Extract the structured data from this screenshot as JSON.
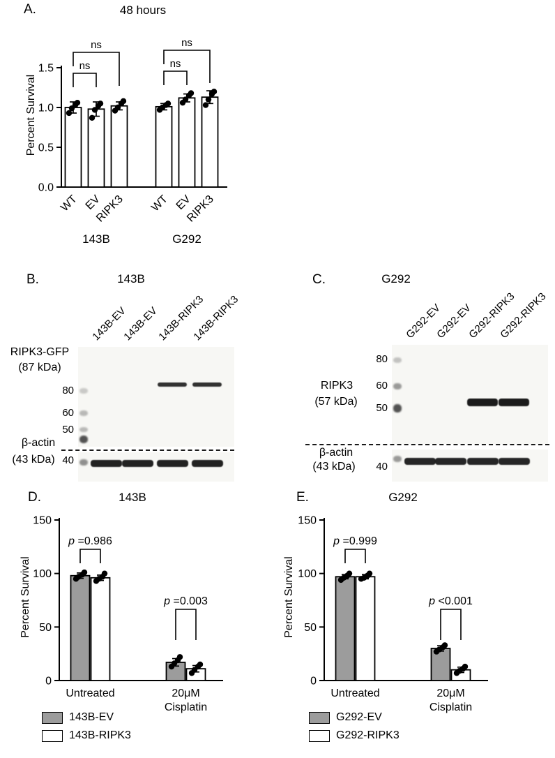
{
  "chart_data": [
    {
      "panel": "A.",
      "type": "bar",
      "title": "48 hours",
      "ylabel": "Percent Survival",
      "ylim": [
        0,
        1.5
      ],
      "yticks": [
        "0.0",
        "0.5",
        "1.0",
        "1.5"
      ],
      "group_labels": [
        "143B",
        "G292"
      ],
      "categories": [
        "WT",
        "EV",
        "RIPK3",
        "WT",
        "EV",
        "RIPK3"
      ],
      "bar_fill": "#ffffff",
      "values": [
        1.0,
        0.98,
        1.02,
        1.01,
        1.12,
        1.13
      ],
      "errors": [
        0.07,
        0.09,
        0.05,
        0.04,
        0.05,
        0.08
      ],
      "points": [
        [
          0.93,
          0.99,
          1.03,
          1.06
        ],
        [
          0.87,
          0.97,
          1.02,
          1.05
        ],
        [
          0.96,
          1.0,
          1.05,
          1.08
        ],
        [
          0.97,
          1.0,
          1.03,
          1.05
        ],
        [
          1.06,
          1.1,
          1.15,
          1.18
        ],
        [
          1.03,
          1.1,
          1.17,
          1.2
        ]
      ],
      "significance": [
        {
          "bars": [
            0,
            1
          ],
          "label": "ns"
        },
        {
          "bars": [
            0,
            2
          ],
          "label": "ns"
        },
        {
          "bars": [
            3,
            4
          ],
          "label": "ns"
        },
        {
          "bars": [
            3,
            5
          ],
          "label": "ns"
        }
      ]
    },
    {
      "panel": "D.",
      "type": "grouped-bar",
      "title": "143B",
      "ylabel": "Percent Survival",
      "ylim": [
        0,
        150
      ],
      "yticks": [
        "0",
        "50",
        "100",
        "150"
      ],
      "categories": [
        [
          "Untreated"
        ],
        [
          "20μM",
          "Cisplatin"
        ]
      ],
      "series": [
        {
          "name": "143B-EV",
          "fill": "#9c9c9c",
          "values": [
            98,
            17
          ],
          "errors": [
            2.5,
            3.5
          ],
          "points": [
            [
              95,
              97,
              99,
              101
            ],
            [
              13,
              16,
              19,
              22
            ]
          ]
        },
        {
          "name": "143B-RIPK3",
          "fill": "#ffffff",
          "values": [
            96,
            11
          ],
          "errors": [
            2.5,
            3
          ],
          "points": [
            [
              93,
              95,
              97,
              100
            ],
            [
              7,
              10,
              13,
              15
            ]
          ]
        }
      ],
      "significance": [
        {
          "category": 0,
          "label": "p =0.986"
        },
        {
          "category": 1,
          "label": "p =0.003"
        }
      ]
    },
    {
      "panel": "E.",
      "type": "grouped-bar",
      "title": "G292",
      "ylabel": "Percent Survival",
      "ylim": [
        0,
        150
      ],
      "yticks": [
        "0",
        "50",
        "100",
        "150"
      ],
      "categories": [
        [
          "Untreated"
        ],
        [
          "20μM",
          "Cisplatin"
        ]
      ],
      "series": [
        {
          "name": "G292-EV",
          "fill": "#9c9c9c",
          "values": [
            97,
            30
          ],
          "errors": [
            2,
            2.5
          ],
          "points": [
            [
              94,
              96,
              98,
              100
            ],
            [
              27,
              29,
              31,
              33
            ]
          ]
        },
        {
          "name": "G292-RIPK3",
          "fill": "#ffffff",
          "values": [
            97,
            10
          ],
          "errors": [
            2,
            2.5
          ],
          "points": [
            [
              95,
              96,
              98,
              100
            ],
            [
              7,
              9,
              11,
              13
            ]
          ]
        }
      ],
      "significance": [
        {
          "category": 0,
          "label": "p =0.999"
        },
        {
          "category": 1,
          "label": "p <0.001"
        }
      ]
    }
  ],
  "blots": [
    {
      "panel": "B.",
      "title": "143B",
      "target_label": "RIPK3-GFP",
      "target_kda": "(87 kDa)",
      "loading_label": "β-actin",
      "loading_kda": "(43 kDa)",
      "loading_marker": "40",
      "markers": [
        "80",
        "60",
        "50"
      ],
      "lane_labels": [
        "143B-EV",
        "143B-EV",
        "143B-RIPK3",
        "143B-RIPK3"
      ],
      "target_bands": [
        0,
        0,
        1,
        1
      ],
      "loading_bands": [
        1,
        1,
        1,
        1
      ]
    },
    {
      "panel": "C.",
      "title": "G292",
      "target_label": "RIPK3",
      "target_kda": "(57 kDa)",
      "loading_label": "β-actin",
      "loading_kda": "(43 kDa)",
      "loading_marker": "40",
      "markers": [
        "80",
        "60",
        "50"
      ],
      "lane_labels": [
        "G292-EV",
        "G292-EV",
        "G292-RIPK3",
        "G292-RIPK3"
      ],
      "target_bands": [
        0,
        0,
        1,
        1
      ],
      "loading_bands": [
        1,
        1,
        1,
        1
      ]
    }
  ]
}
